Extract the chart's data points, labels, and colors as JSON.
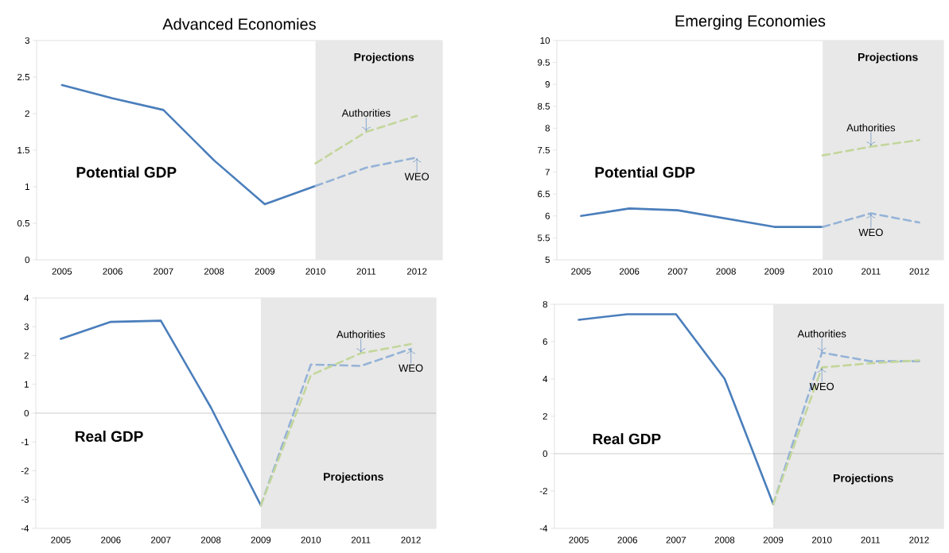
{
  "chart_data": [
    {
      "type": "line",
      "title": "Advanced Economies",
      "subtitle": "Potential GDP",
      "categories": [
        "2005",
        "2006",
        "2007",
        "2008",
        "2009",
        "2010",
        "2011",
        "2012"
      ],
      "ylim": [
        0,
        3
      ],
      "yticks": [
        0,
        0.5,
        1,
        1.5,
        2,
        2.5,
        3
      ],
      "series": [
        {
          "color": "#4a7ebb",
          "line_style": "solid",
          "values": [
            2.39,
            2.21,
            2.05,
            1.36,
            0.76,
            1.01,
            null,
            null
          ]
        },
        {
          "color": "#95b3d7",
          "line_style": "dashed",
          "values": [
            null,
            null,
            null,
            null,
            null,
            1.01,
            1.26,
            1.4
          ]
        },
        {
          "color": "#c3d69b",
          "line_style": "dashed",
          "values": [
            null,
            null,
            null,
            null,
            null,
            1.32,
            1.75,
            1.97
          ]
        }
      ],
      "bands": [
        {
          "axis": "x",
          "from": "2010",
          "to": "2012",
          "label": "Projections",
          "color": "#e8e8e8"
        }
      ],
      "annotations": [
        {
          "text": "Authorities",
          "x": "2011",
          "y": 1.75
        },
        {
          "text": "WEO",
          "x": "2012",
          "y": 1.4
        }
      ]
    },
    {
      "type": "line",
      "title": "Emerging Economies",
      "subtitle": "Potential GDP",
      "categories": [
        "2005",
        "2006",
        "2007",
        "2008",
        "2009",
        "2010",
        "2011",
        "2012"
      ],
      "ylim": [
        5,
        10
      ],
      "yticks": [
        5,
        5.5,
        6,
        6.5,
        7,
        7.5,
        8,
        8.5,
        9,
        9.5,
        10
      ],
      "series": [
        {
          "color": "#4a7ebb",
          "line_style": "solid",
          "values": [
            6.0,
            6.17,
            6.13,
            5.94,
            5.75,
            5.75,
            null,
            null
          ]
        },
        {
          "color": "#95b3d7",
          "line_style": "dashed",
          "values": [
            null,
            null,
            null,
            null,
            null,
            5.75,
            6.06,
            5.85
          ]
        },
        {
          "color": "#c3d69b",
          "line_style": "dashed",
          "values": [
            null,
            null,
            null,
            null,
            null,
            7.38,
            7.58,
            7.73
          ]
        }
      ],
      "bands": [
        {
          "axis": "x",
          "from": "2010",
          "to": "2012",
          "label": "Projections",
          "color": "#e8e8e8"
        }
      ],
      "annotations": [
        {
          "text": "Authorities",
          "x": "2011",
          "y": 7.58
        },
        {
          "text": "WEO",
          "x": "2011",
          "y": 6.06
        }
      ]
    },
    {
      "type": "line",
      "subtitle": "Real GDP",
      "categories": [
        "2005",
        "2006",
        "2007",
        "2008",
        "2009",
        "2010",
        "2011",
        "2012"
      ],
      "ylim": [
        -4,
        4
      ],
      "yticks": [
        -4,
        -3,
        -2,
        -1,
        0,
        1,
        2,
        3,
        4
      ],
      "series": [
        {
          "color": "#4a7ebb",
          "line_style": "solid",
          "values": [
            2.58,
            3.17,
            3.21,
            0.2,
            -3.2,
            null,
            null,
            null
          ]
        },
        {
          "color": "#95b3d7",
          "line_style": "dashed",
          "values": [
            null,
            null,
            null,
            null,
            -3.2,
            1.69,
            1.64,
            2.23
          ]
        },
        {
          "color": "#c3d69b",
          "line_style": "dashed",
          "values": [
            null,
            null,
            null,
            null,
            -3.2,
            1.32,
            2.08,
            2.4
          ]
        }
      ],
      "bands": [
        {
          "axis": "x",
          "from": "2009",
          "to": "2012",
          "label": "Projections",
          "color": "#e8e8e8"
        }
      ],
      "annotations": [
        {
          "text": "Authorities",
          "x": "2011",
          "y": 2.08
        },
        {
          "text": "WEO",
          "x": "2012",
          "y": 2.23
        }
      ]
    },
    {
      "type": "line",
      "subtitle": "Real GDP",
      "categories": [
        "2005",
        "2006",
        "2007",
        "2008",
        "2009",
        "2010",
        "2011",
        "2012"
      ],
      "ylim": [
        -4,
        8
      ],
      "yticks": [
        -4,
        -2,
        0,
        2,
        4,
        6,
        8
      ],
      "series": [
        {
          "color": "#4a7ebb",
          "line_style": "solid",
          "values": [
            7.17,
            7.47,
            7.47,
            4.01,
            -2.7,
            null,
            null,
            null
          ]
        },
        {
          "color": "#95b3d7",
          "line_style": "dashed",
          "values": [
            null,
            null,
            null,
            null,
            -2.7,
            5.41,
            4.95,
            4.95
          ]
        },
        {
          "color": "#c3d69b",
          "line_style": "dashed",
          "values": [
            null,
            null,
            null,
            null,
            -2.7,
            4.62,
            4.84,
            5.0
          ]
        }
      ],
      "bands": [
        {
          "axis": "x",
          "from": "2009",
          "to": "2012",
          "label": "Projections",
          "color": "#e8e8e8"
        }
      ],
      "annotations": [
        {
          "text": "Authorities",
          "x": "2010",
          "y": 5.41
        },
        {
          "text": "WEO",
          "x": "2010",
          "y": 4.62
        }
      ]
    }
  ]
}
